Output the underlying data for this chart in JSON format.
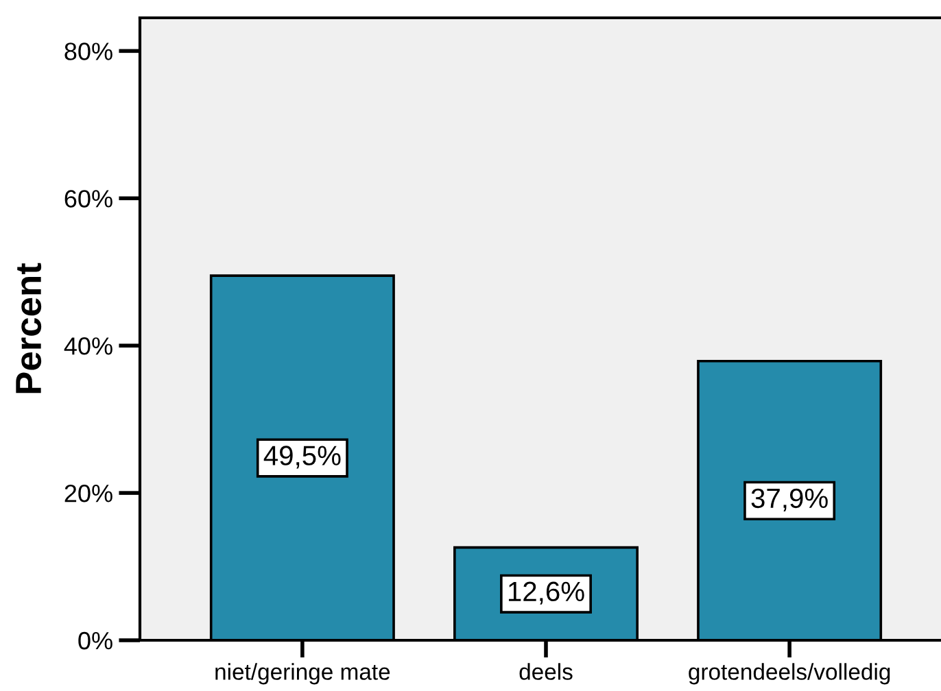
{
  "chart_data": {
    "type": "bar",
    "ylabel": "Percent",
    "categories": [
      "niet/geringe mate",
      "deels",
      "grotendeels/volledig"
    ],
    "values": [
      49.5,
      12.6,
      37.9
    ],
    "value_labels": [
      "49,5%",
      "12,6%",
      "37,9%"
    ],
    "color": "#258bab",
    "ylim": [
      0,
      84.5
    ],
    "yticks": [
      {
        "value": 0,
        "label": "0%"
      },
      {
        "value": 20,
        "label": "20%"
      },
      {
        "value": 40,
        "label": "40%"
      },
      {
        "value": 60,
        "label": "60%"
      },
      {
        "value": 80,
        "label": "80%"
      }
    ]
  }
}
